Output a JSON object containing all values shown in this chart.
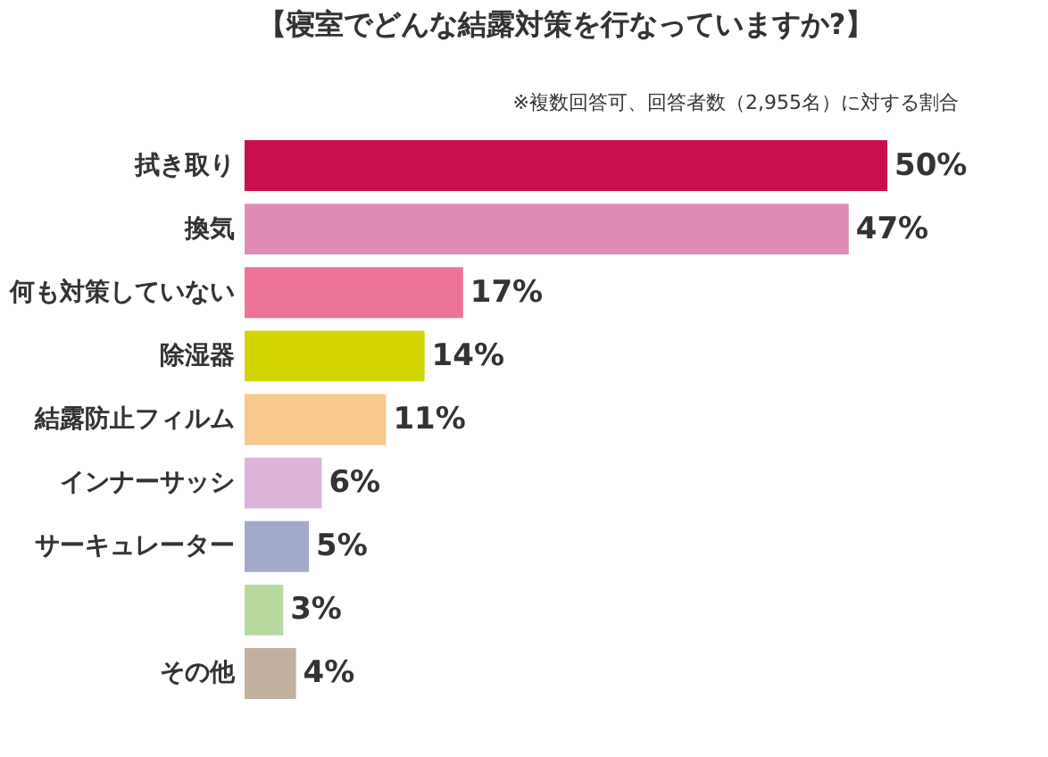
{
  "chart_data": {
    "type": "bar",
    "orientation": "horizontal",
    "title": "【寝室でどんな結露対策を行なっていますか?】",
    "subtitle": "※複数回答可、回答者数（2,955名）に対する割合",
    "categories": [
      "拭き取り",
      "換気",
      "何も対策していない",
      "除湿器",
      "結露防止フィルム",
      "インナーサッシ",
      "サーキュレーター",
      null,
      "その他"
    ],
    "values": [
      50,
      47,
      17,
      14,
      11,
      6,
      5,
      3,
      4
    ],
    "colors": [
      "#c8104e",
      "#e08bb5",
      "#ee7399",
      "#d2d400",
      "#f7c98a",
      "#dcb3db",
      "#a3a9c8",
      "#b7d9a0",
      "#c4b09e"
    ],
    "value_labels": [
      "50%",
      "47%",
      "17%",
      "14%",
      "11%",
      "6%",
      "5%",
      "3%",
      "4%"
    ],
    "legend": false
  }
}
